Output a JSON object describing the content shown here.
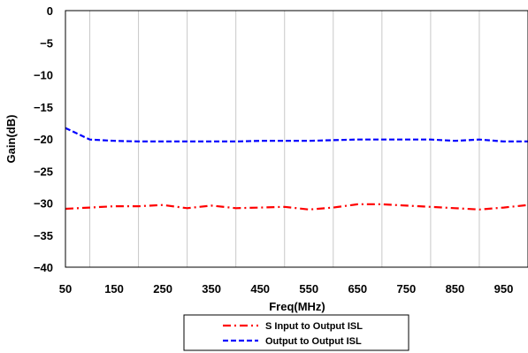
{
  "chart_data": {
    "type": "line",
    "xlabel": "Freq(MHz)",
    "ylabel": "Gain(dB)",
    "xlim": [
      50,
      1000
    ],
    "ylim": [
      -40,
      0
    ],
    "x_ticks": [
      "50",
      "150",
      "250",
      "350",
      "450",
      "550",
      "650",
      "750",
      "850",
      "950"
    ],
    "y_ticks": [
      "0",
      "−5",
      "−10",
      "−15",
      "−20",
      "−25",
      "−30",
      "−35",
      "−40"
    ],
    "grid": "vertical",
    "legend_position": "bottom",
    "x": [
      50,
      100,
      150,
      200,
      250,
      300,
      350,
      400,
      450,
      500,
      550,
      600,
      650,
      700,
      750,
      800,
      850,
      900,
      950,
      1000
    ],
    "series": [
      {
        "name": "S Input to Output ISL",
        "color": "#ff0000",
        "dash": "dash-dot",
        "values": [
          -30.9,
          -30.7,
          -30.5,
          -30.5,
          -30.3,
          -30.8,
          -30.4,
          -30.8,
          -30.7,
          -30.6,
          -31.0,
          -30.7,
          -30.2,
          -30.2,
          -30.4,
          -30.6,
          -30.8,
          -31.0,
          -30.7,
          -30.3
        ]
      },
      {
        "name": "Output to Output ISL",
        "color": "#0000ff",
        "dash": "dashed",
        "values": [
          -18.3,
          -20.1,
          -20.3,
          -20.4,
          -20.4,
          -20.4,
          -20.4,
          -20.4,
          -20.3,
          -20.3,
          -20.3,
          -20.2,
          -20.1,
          -20.1,
          -20.1,
          -20.1,
          -20.3,
          -20.1,
          -20.4,
          -20.4
        ]
      }
    ]
  }
}
